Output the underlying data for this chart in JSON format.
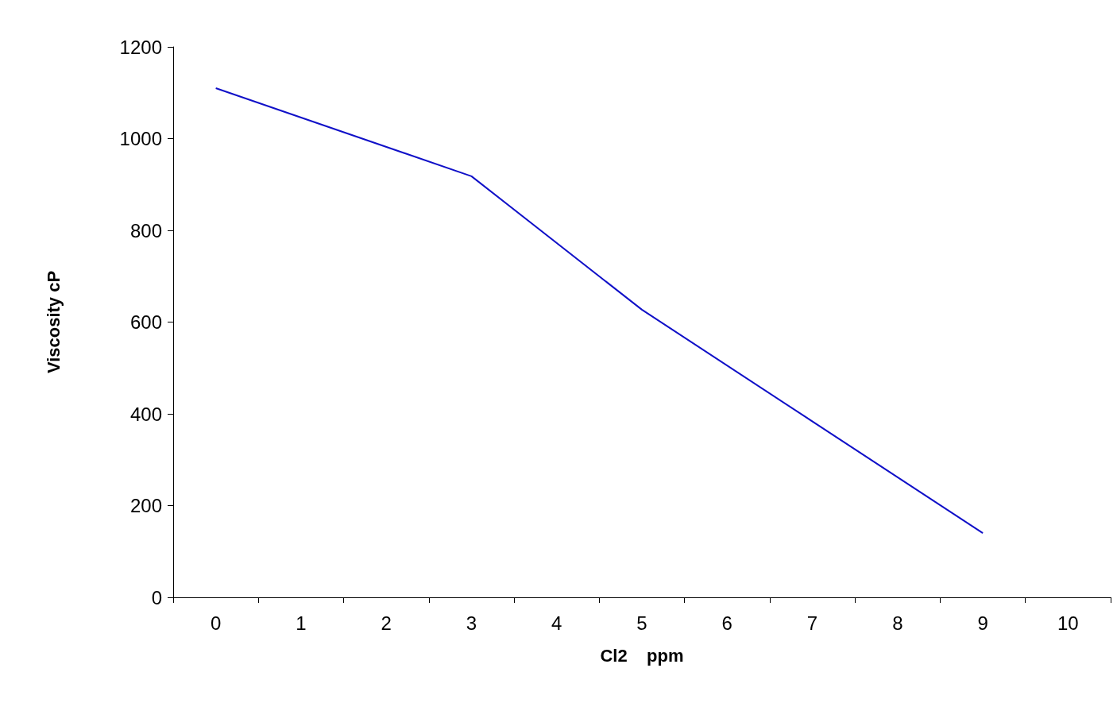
{
  "chart_data": {
    "type": "line",
    "xlabel": "Cl2    ppm",
    "ylabel": "Viscosity cP",
    "categories": [
      "0",
      "1",
      "2",
      "3",
      "4",
      "5",
      "6",
      "7",
      "8",
      "9",
      "10"
    ],
    "series": [
      {
        "color": "#1010c8",
        "x": [
          "0",
          "3",
          "5",
          "9"
        ],
        "values": [
          1110,
          918,
          627,
          140
        ]
      }
    ],
    "ylim": [
      0,
      1200
    ],
    "yticks": [
      0,
      200,
      400,
      600,
      800,
      1000,
      1200
    ],
    "grid": false,
    "marker": "none",
    "line_style": "solid"
  }
}
